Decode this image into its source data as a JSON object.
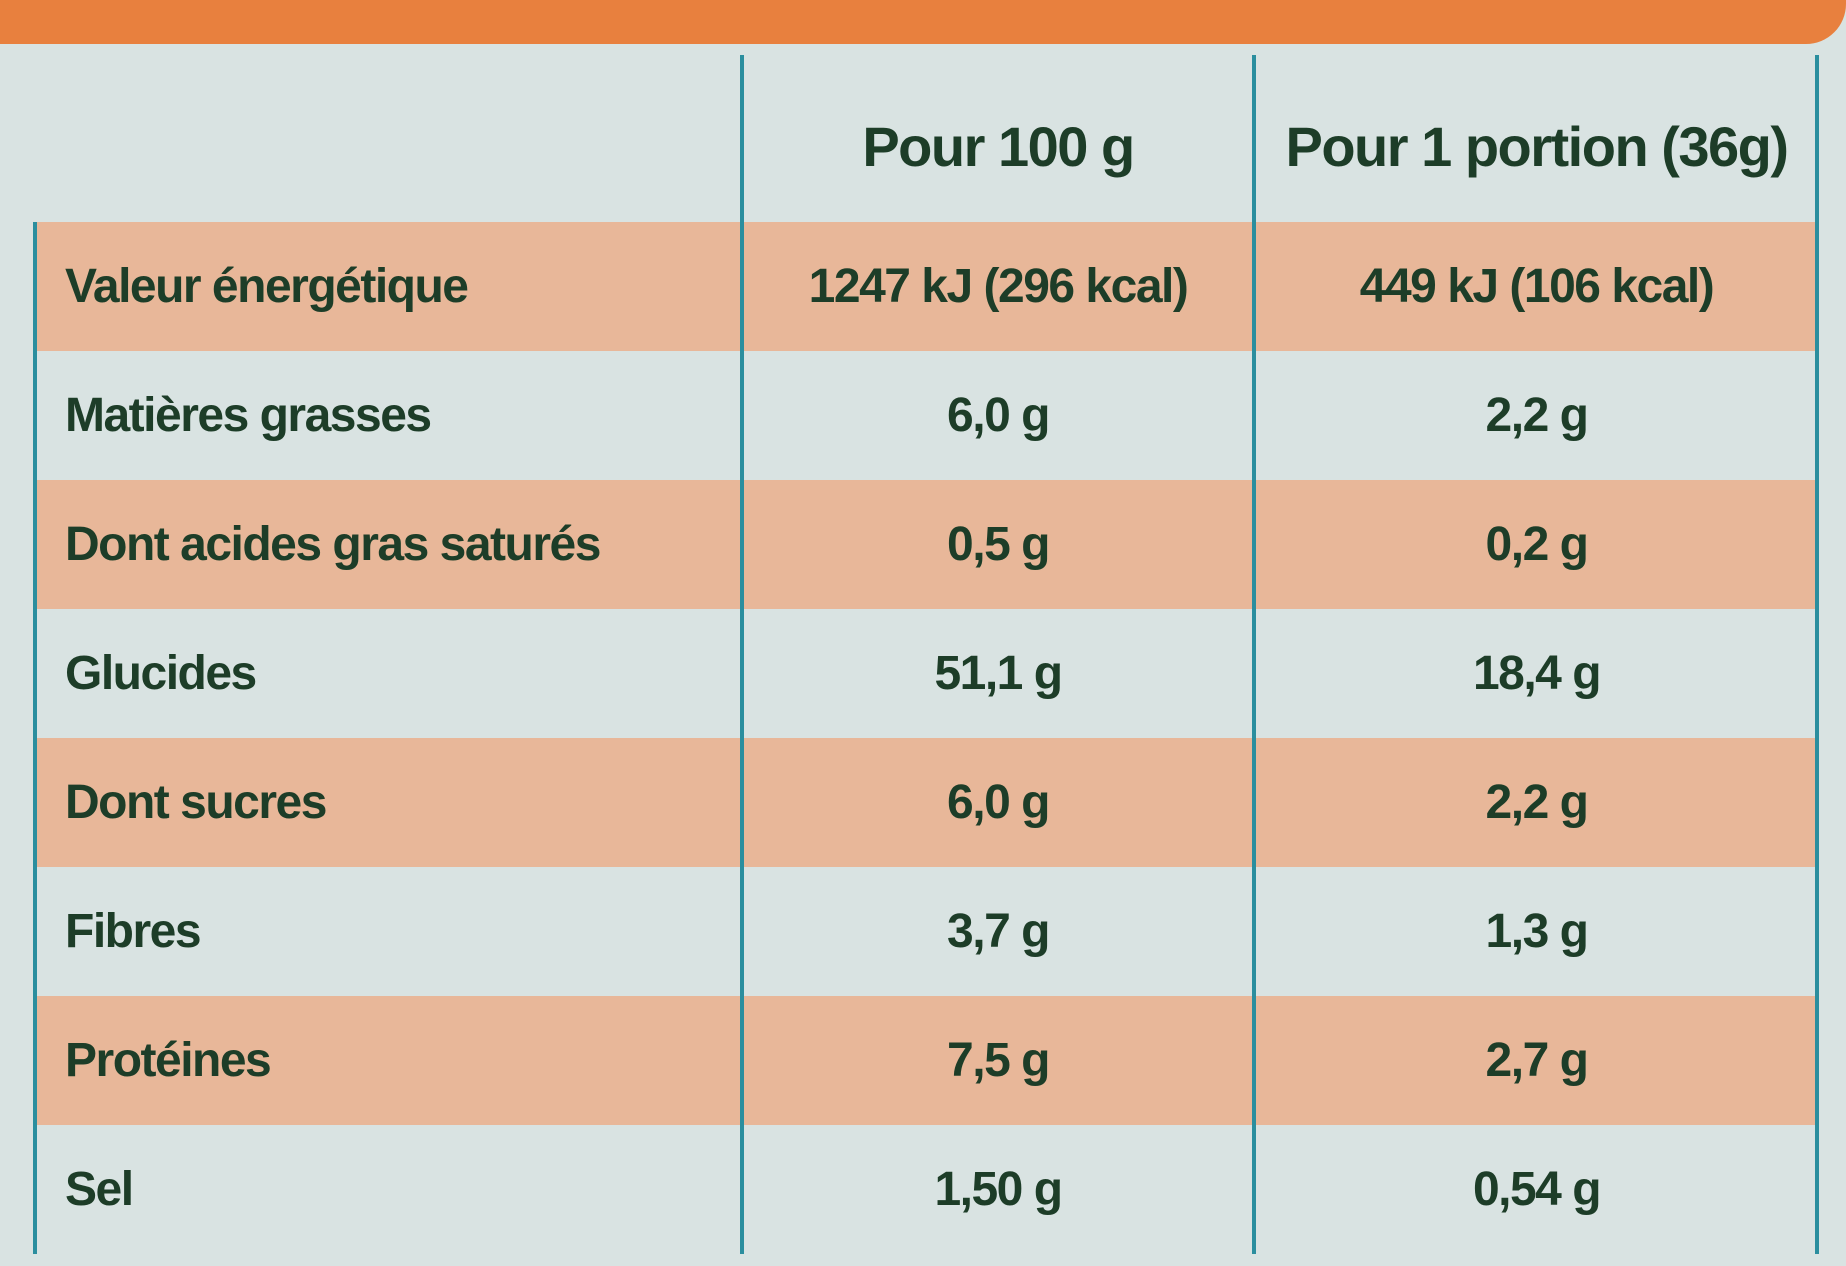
{
  "table": {
    "header": [
      "Pour 100 g",
      "Pour 1 portion (36g)"
    ],
    "rows": [
      [
        "Valeur énergétique",
        "1247 kJ (296 kcal)",
        "449 kJ (106 kcal)"
      ],
      [
        "Matières grasses",
        "6,0 g",
        "2,2 g"
      ],
      [
        "Dont acides gras saturés",
        "0,5 g",
        "0,2 g"
      ],
      [
        "Glucides",
        "51,1 g",
        "18,4 g"
      ],
      [
        "Dont sucres",
        "6,0 g",
        "2,2 g"
      ],
      [
        "Fibres",
        "3,7 g",
        "1,3 g"
      ],
      [
        "Protéines",
        "7,5 g",
        "2,7 g"
      ],
      [
        "Sel",
        "1,50 g",
        "0,54 g"
      ]
    ]
  }
}
